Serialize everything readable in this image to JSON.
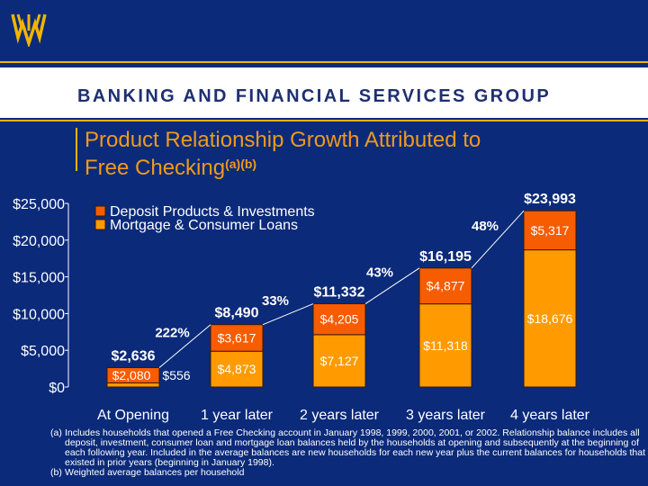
{
  "header": {
    "group_name": "BANKING AND FINANCIAL SERVICES GROUP"
  },
  "chart_title": {
    "text": "Product Relationship Growth Attributed to Free Checking",
    "line1": "Product Relationship Growth Attributed to",
    "line2": "Free Checking",
    "superscript": "(a)(b)"
  },
  "colors": {
    "background": "#0b2a7a",
    "deposit": "#f75c00",
    "loans": "#ff9b00",
    "accent": "#f2b400",
    "text": "#ffffff"
  },
  "chart_data": {
    "type": "bar",
    "stacked": true,
    "categories": [
      "At Opening",
      "1 year later",
      "2 years later",
      "3 years later",
      "4 years later"
    ],
    "series": [
      {
        "name": "Mortgage & Consumer Loans",
        "values": [
          556,
          4873,
          7127,
          11318,
          18676
        ],
        "labels": [
          "$556",
          "$4,873",
          "$7,127",
          "$11,318",
          "$18,676"
        ]
      },
      {
        "name": "Deposit Products & Investments",
        "values": [
          2080,
          3617,
          4205,
          4877,
          5317
        ],
        "labels": [
          "$2,080",
          "$3,617",
          "$4,205",
          "$4,877",
          "$5,317"
        ]
      }
    ],
    "totals": [
      2636,
      8490,
      11332,
      16195,
      23993
    ],
    "total_labels": [
      "$2,636",
      "$8,490",
      "$11,332",
      "$16,195",
      "$23,993"
    ],
    "growth_labels": [
      "222%",
      "33%",
      "43%",
      "48%"
    ],
    "y_ticks": [
      "$0",
      "$5,000",
      "$10,000",
      "$15,000",
      "$20,000",
      "$25,000"
    ],
    "y_tick_values": [
      0,
      5000,
      10000,
      15000,
      20000,
      25000
    ],
    "ylim": [
      0,
      25000
    ],
    "legend": [
      "Deposit Products & Investments",
      "Mortgage & Consumer Loans"
    ],
    "legend_position": "top-left",
    "grid": false
  },
  "footnotes": [
    {
      "mark": "(a)",
      "text": "Includes households that opened a Free Checking account in January 1998, 1999, 2000, 2001, or 2002. Relationship balance includes all deposit, investment, consumer loan and mortgage loan balances held by the households at opening and subsequently at the beginning of each following year. Included in the average balances are new households for each new year plus the current balances for households that existed in prior years (beginning in January 1998)."
    },
    {
      "mark": "(b)",
      "text": "Weighted average balances per household"
    }
  ]
}
